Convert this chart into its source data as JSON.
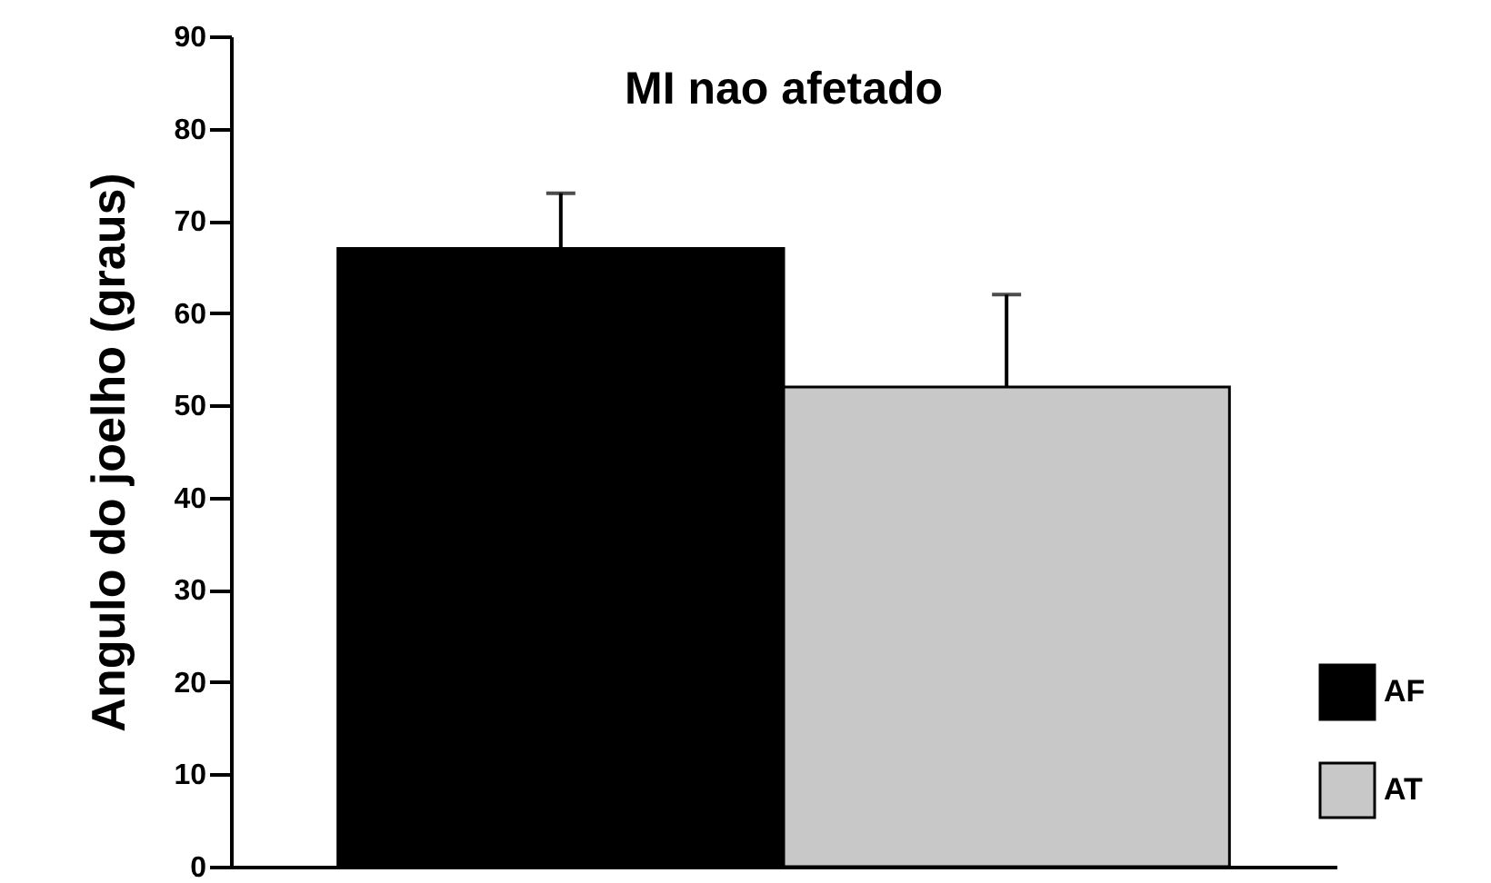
{
  "chart_data": {
    "type": "bar",
    "title": "MI nao afetado",
    "ylabel": "Angulo do joelho (graus)",
    "categories": [
      null
    ],
    "series": [
      {
        "name": "AF",
        "color": "#000000",
        "values": [
          67
        ],
        "errors": [
          6
        ]
      },
      {
        "name": "AT",
        "color": "#c8c8c8",
        "values": [
          52
        ],
        "errors": [
          10
        ]
      }
    ],
    "ylim": [
      0,
      90
    ],
    "yticks": [
      0,
      10,
      20,
      30,
      40,
      50,
      60,
      70,
      80,
      90
    ],
    "legend": "bottom right"
  }
}
